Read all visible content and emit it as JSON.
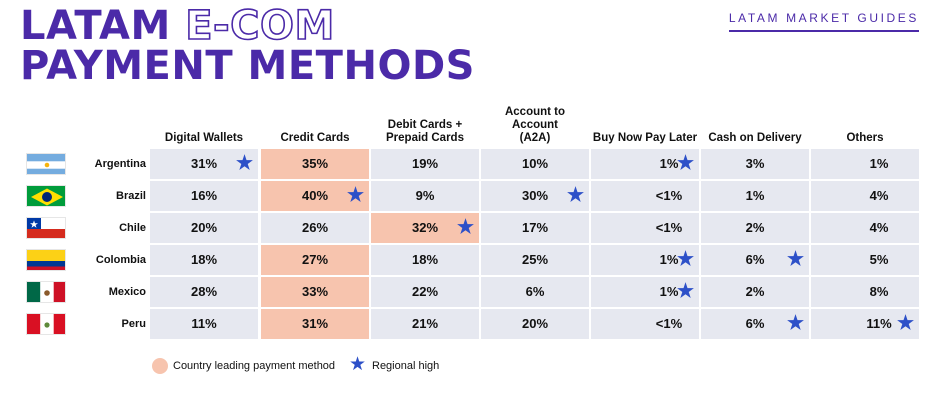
{
  "header": {
    "title_word1": "LATAM",
    "title_word2": "E-COM",
    "title_line2": "PAYMENT METHODS",
    "guide_label": "LATAM MARKET GUIDES"
  },
  "colors": {
    "title": "#4b2aa8",
    "leading_highlight": "#f7c4ae",
    "cell_background": "#e6e8f0",
    "regional_high_star": "#2d50c8"
  },
  "chart_data": {
    "type": "table",
    "columns": [
      "Digital Wallets",
      "Credit Cards",
      "Debit Cards + Prepaid Cards",
      "Account to Account (A2A)",
      "Buy Now Pay Later",
      "Cash on Delivery",
      "Others"
    ],
    "rows": [
      {
        "country": "Argentina",
        "flag_icon": "argentina-flag-icon",
        "values": [
          "31%",
          "35%",
          "19%",
          "10%",
          "1%",
          "3%",
          "1%"
        ],
        "leading": [
          1
        ],
        "regional_high": [
          0,
          4
        ]
      },
      {
        "country": "Brazil",
        "flag_icon": "brazil-flag-icon",
        "values": [
          "16%",
          "40%",
          "9%",
          "30%",
          "<1%",
          "1%",
          "4%"
        ],
        "leading": [
          1
        ],
        "regional_high": [
          1,
          3
        ]
      },
      {
        "country": "Chile",
        "flag_icon": "chile-flag-icon",
        "values": [
          "20%",
          "26%",
          "32%",
          "17%",
          "<1%",
          "2%",
          "4%"
        ],
        "leading": [
          2
        ],
        "regional_high": [
          2
        ]
      },
      {
        "country": "Colombia",
        "flag_icon": "colombia-flag-icon",
        "values": [
          "18%",
          "27%",
          "18%",
          "25%",
          "1%",
          "6%",
          "5%"
        ],
        "leading": [
          1
        ],
        "regional_high": [
          4,
          5
        ]
      },
      {
        "country": "Mexico",
        "flag_icon": "mexico-flag-icon",
        "values": [
          "28%",
          "33%",
          "22%",
          "6%",
          "1%",
          "2%",
          "8%"
        ],
        "leading": [
          1
        ],
        "regional_high": [
          4
        ]
      },
      {
        "country": "Peru",
        "flag_icon": "peru-flag-icon",
        "values": [
          "11%",
          "31%",
          "21%",
          "20%",
          "<1%",
          "6%",
          "11%"
        ],
        "leading": [
          1
        ],
        "regional_high": [
          5,
          6
        ]
      }
    ],
    "legend": [
      {
        "label": "Country leading payment method",
        "marker": "circle-swatch"
      },
      {
        "label": "Regional high",
        "marker": "star-icon"
      }
    ]
  }
}
